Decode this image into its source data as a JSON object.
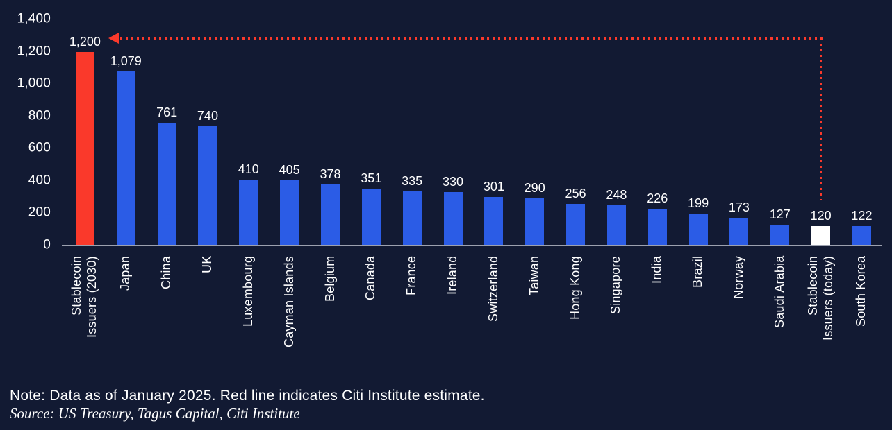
{
  "colors": {
    "background": "#121A33",
    "bar_default": "#2B5CE6",
    "bar_estimate_2030": "#FA392B",
    "bar_today": "#FFFFFF",
    "axis_line": "#9CA1AF",
    "text": "#FFFFFF",
    "annotation_line": "#FA392B"
  },
  "chart_data": {
    "type": "bar",
    "title": "",
    "xlabel": "",
    "ylabel": "",
    "ylim": [
      0,
      1400
    ],
    "grid": false,
    "legend": "none",
    "categories": [
      "Stablecoin\nIssuers (2030)",
      "Japan",
      "China",
      "UK",
      "Luxembourg",
      "Cayman Islands",
      "Belgium",
      "Canada",
      "France",
      "Ireland",
      "Switzerland",
      "Taiwan",
      "Hong Kong",
      "Singapore",
      "India",
      "Brazil",
      "Norway",
      "Saudi Arabia",
      "Stablecoin\nIssuers (today)",
      "South Korea"
    ],
    "values": [
      1200,
      1079,
      761,
      740,
      410,
      405,
      378,
      351,
      335,
      330,
      301,
      290,
      256,
      248,
      226,
      199,
      173,
      127,
      120,
      122
    ],
    "value_labels": [
      "1,200",
      "1,079",
      "761",
      "740",
      "410",
      "405",
      "378",
      "351",
      "335",
      "330",
      "301",
      "290",
      "256",
      "248",
      "226",
      "199",
      "173",
      "127",
      "120",
      "122"
    ],
    "bar_colors": [
      "#FA392B",
      "#2B5CE6",
      "#2B5CE6",
      "#2B5CE6",
      "#2B5CE6",
      "#2B5CE6",
      "#2B5CE6",
      "#2B5CE6",
      "#2B5CE6",
      "#2B5CE6",
      "#2B5CE6",
      "#2B5CE6",
      "#2B5CE6",
      "#2B5CE6",
      "#2B5CE6",
      "#2B5CE6",
      "#2B5CE6",
      "#2B5CE6",
      "#FFFFFF",
      "#2B5CE6"
    ],
    "yticks": [
      {
        "label": "1,400",
        "value": 1400
      },
      {
        "label": "1,200",
        "value": 1200
      },
      {
        "label": "1,000",
        "value": 1000
      },
      {
        "label": "800",
        "value": 800
      },
      {
        "label": "600",
        "value": 600
      },
      {
        "label": "400",
        "value": 400
      },
      {
        "label": "200",
        "value": 200
      },
      {
        "label": "0",
        "value": 0
      }
    ],
    "annotation": {
      "shape": "dotted-arrow",
      "color": "#FA392B",
      "from_category_index": 18,
      "to_category_index": 0,
      "meaning": "Red line indicates Citi Institute estimate"
    }
  },
  "footer": {
    "note": "Note: Data as of January 2025. Red line indicates Citi Institute estimate.",
    "source": "Source: US Treasury, Tagus Capital, Citi Institute"
  }
}
